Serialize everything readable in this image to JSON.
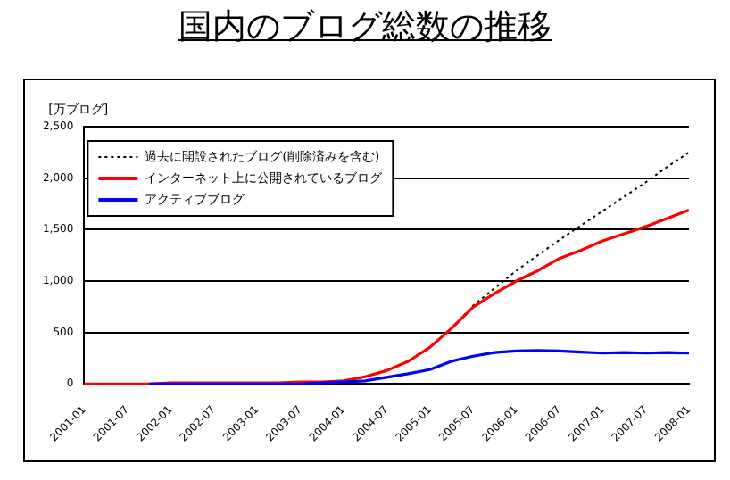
{
  "chart_data": {
    "type": "line",
    "title": "国内のブログ総数の推移",
    "ylabel": "[万ブログ]",
    "categories": [
      "2001-01",
      null,
      "2001-07",
      null,
      "2002-01",
      null,
      "2002-07",
      null,
      "2003-01",
      null,
      "2003-07",
      null,
      "2004-01",
      null,
      "2004-07",
      null,
      "2005-01",
      null,
      "2005-07",
      null,
      "2006-01",
      null,
      "2006-07",
      null,
      "2007-01",
      null,
      "2007-07",
      null,
      "2008-01"
    ],
    "series": [
      {
        "name": "過去に開設されたブログ(削除済みを含む)",
        "color": "#000000",
        "line_style": "dotted",
        "values": [
          0,
          0,
          0,
          0,
          10,
          10,
          10,
          10,
          10,
          10,
          20,
          20,
          30,
          70,
          130,
          220,
          355,
          540,
          760,
          930,
          1100,
          1250,
          1400,
          1540,
          1680,
          1820,
          1960,
          2110,
          2250
        ]
      },
      {
        "name": "インターネット上に公開されているブログ",
        "color": "#ff0000",
        "values": [
          0,
          0,
          0,
          0,
          10,
          10,
          10,
          10,
          10,
          10,
          20,
          20,
          30,
          70,
          130,
          220,
          355,
          540,
          745,
          880,
          1000,
          1100,
          1220,
          1300,
          1390,
          1460,
          1530,
          1610,
          1690
        ]
      },
      {
        "name": "アクティブブログ",
        "color": "#0000ff",
        "values": [
          null,
          null,
          null,
          0,
          0,
          0,
          0,
          0,
          0,
          0,
          0,
          10,
          20,
          30,
          65,
          100,
          140,
          220,
          270,
          305,
          320,
          325,
          320,
          310,
          300,
          305,
          300,
          305,
          300
        ]
      }
    ],
    "ylim": [
      0,
      2500
    ],
    "yticks": [
      {
        "value": 0,
        "label": "0"
      },
      {
        "value": 500,
        "label": "500"
      },
      {
        "value": 1000,
        "label": "1,000"
      },
      {
        "value": 1500,
        "label": "1,500"
      },
      {
        "value": 2000,
        "label": "2,000"
      },
      {
        "value": 2500,
        "label": "2,500"
      }
    ],
    "grid": "y",
    "legend": "top left",
    "marker": "none"
  }
}
